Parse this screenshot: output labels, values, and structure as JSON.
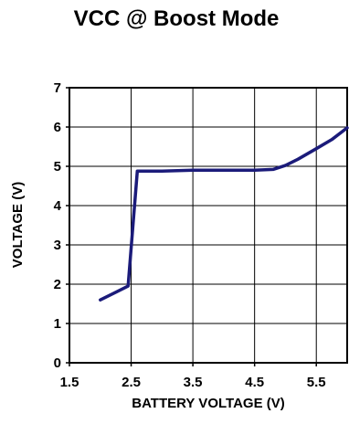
{
  "chart_data": {
    "type": "line",
    "title": "VCC @ Boost Mode",
    "xlabel": "BATTERY VOLTAGE (V)",
    "ylabel": "VOLTAGE (V)",
    "xlim": [
      1.5,
      6.0
    ],
    "ylim": [
      0,
      7
    ],
    "x_ticks": [
      1.5,
      2.5,
      3.5,
      4.5,
      5.5
    ],
    "x_tick_labels": [
      "1.5",
      "2.5",
      "3.5",
      "4.5",
      "5.5"
    ],
    "y_ticks": [
      0,
      1,
      2,
      3,
      4,
      5,
      6,
      7
    ],
    "y_tick_labels": [
      "0",
      "1",
      "2",
      "3",
      "4",
      "5",
      "6",
      "7"
    ],
    "grid": true,
    "legend": "none",
    "series": [
      {
        "color": "#1b1b7a",
        "x": [
          2.0,
          2.45,
          2.6,
          3.0,
          3.5,
          4.0,
          4.5,
          4.8,
          5.0,
          5.2,
          5.5,
          5.75,
          6.0
        ],
        "y": [
          1.6,
          1.95,
          4.88,
          4.88,
          4.9,
          4.9,
          4.9,
          4.92,
          5.02,
          5.18,
          5.45,
          5.68,
          5.98
        ]
      }
    ]
  }
}
